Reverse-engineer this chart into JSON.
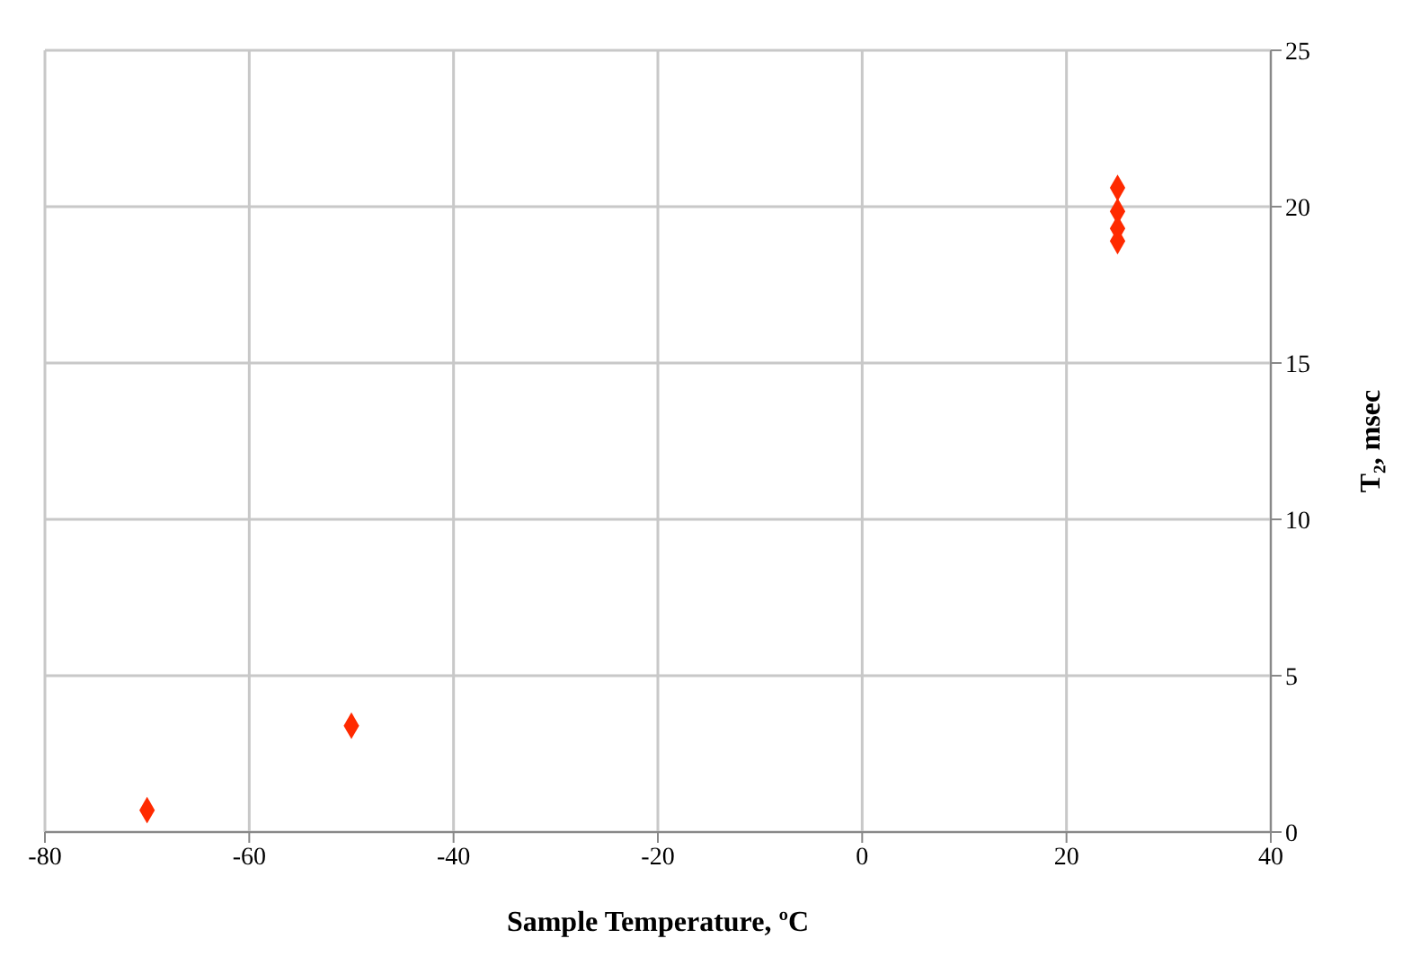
{
  "chart_data": {
    "type": "scatter",
    "xlabel": "Sample Temperature, ºC",
    "ylabel": "T₂, msec",
    "x": [
      -70,
      -50,
      25,
      25,
      25,
      25
    ],
    "series": [
      {
        "color": "#ff2a00",
        "values": [
          0.7,
          3.4,
          20.6,
          19.85,
          19.3,
          18.9
        ]
      }
    ],
    "xlim": [
      -80,
      40
    ],
    "xticks": [
      -80,
      -60,
      -40,
      -20,
      0,
      20,
      40
    ],
    "ylim": [
      0,
      25
    ],
    "yticks": [
      0,
      5,
      10,
      15,
      20,
      25
    ],
    "grid": true,
    "marker": "diamond",
    "legend": false
  }
}
